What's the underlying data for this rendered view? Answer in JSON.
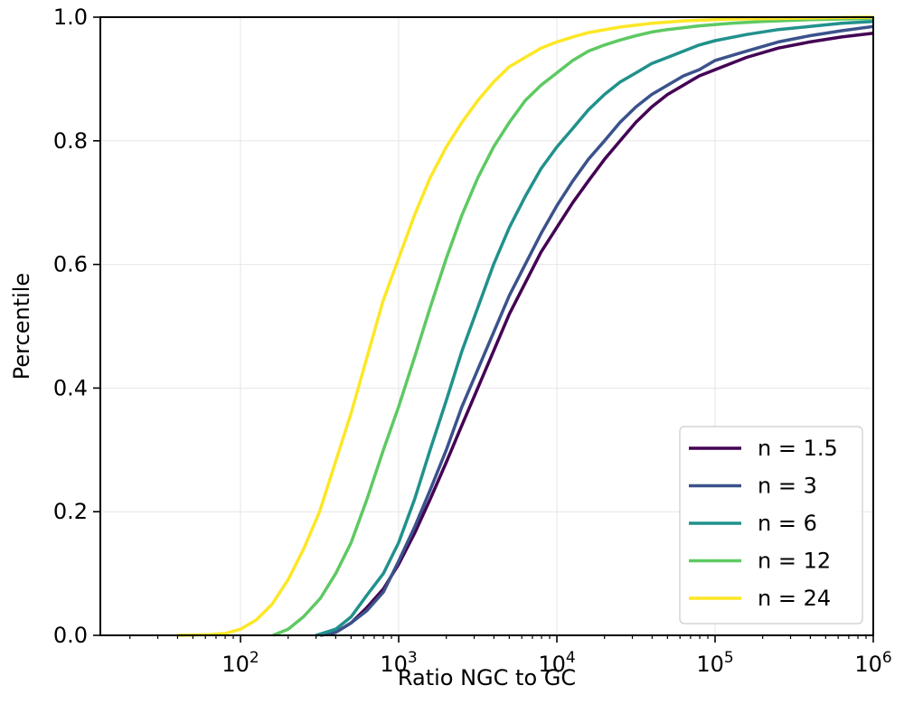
{
  "chart_data": {
    "type": "line",
    "title": "",
    "xlabel": "Ratio NGC to GC",
    "ylabel": "Percentile",
    "xscale": "log",
    "xlim": [
      13,
      1000000
    ],
    "ylim": [
      0,
      1
    ],
    "x_ticks": [
      {
        "base": "10",
        "exp": "2",
        "value": 100
      },
      {
        "base": "10",
        "exp": "3",
        "value": 1000
      },
      {
        "base": "10",
        "exp": "4",
        "value": 10000
      },
      {
        "base": "10",
        "exp": "5",
        "value": 100000
      },
      {
        "base": "10",
        "exp": "6",
        "value": 1000000
      }
    ],
    "y_ticks": [
      "0.0",
      "0.2",
      "0.4",
      "0.6",
      "0.8",
      "1.0"
    ],
    "grid": true,
    "legend_position": "bottom-right",
    "series": [
      {
        "name": "n = 1.5",
        "color": "#440154",
        "x": [
          320,
          400,
          500,
          630,
          800,
          1000,
          1260,
          1580,
          2000,
          2510,
          3160,
          3980,
          5010,
          6310,
          7940,
          10000,
          12600,
          15800,
          20000,
          25100,
          31600,
          39800,
          50100,
          63100,
          79400,
          100000,
          158000,
          251000,
          398000,
          631000,
          1000000
        ],
        "y": [
          0.0,
          0.005,
          0.02,
          0.045,
          0.075,
          0.115,
          0.165,
          0.22,
          0.28,
          0.34,
          0.4,
          0.46,
          0.52,
          0.57,
          0.62,
          0.66,
          0.7,
          0.735,
          0.77,
          0.8,
          0.83,
          0.855,
          0.875,
          0.89,
          0.905,
          0.915,
          0.935,
          0.95,
          0.96,
          0.968,
          0.974
        ]
      },
      {
        "name": "n = 3",
        "color": "#3b528b",
        "x": [
          320,
          400,
          500,
          630,
          800,
          1000,
          1260,
          1580,
          2000,
          2510,
          3160,
          3980,
          5010,
          6310,
          7940,
          10000,
          12600,
          15800,
          20000,
          25100,
          31600,
          39800,
          50100,
          63100,
          79400,
          100000,
          158000,
          251000,
          398000,
          631000,
          1000000
        ],
        "y": [
          0.0,
          0.005,
          0.02,
          0.04,
          0.07,
          0.12,
          0.175,
          0.235,
          0.3,
          0.37,
          0.43,
          0.49,
          0.55,
          0.6,
          0.65,
          0.695,
          0.735,
          0.77,
          0.8,
          0.83,
          0.855,
          0.875,
          0.89,
          0.905,
          0.915,
          0.93,
          0.945,
          0.96,
          0.97,
          0.978,
          0.985
        ]
      },
      {
        "name": "n = 6",
        "color": "#21918c",
        "x": [
          300,
          400,
          500,
          630,
          800,
          1000,
          1260,
          1580,
          2000,
          2510,
          3160,
          3980,
          5010,
          6310,
          7940,
          10000,
          12600,
          15800,
          20000,
          25100,
          31600,
          39800,
          50100,
          63100,
          79400,
          100000,
          158000,
          251000,
          398000,
          631000,
          1000000
        ],
        "y": [
          0.0,
          0.01,
          0.03,
          0.065,
          0.1,
          0.15,
          0.22,
          0.3,
          0.38,
          0.46,
          0.53,
          0.6,
          0.66,
          0.71,
          0.755,
          0.79,
          0.82,
          0.85,
          0.875,
          0.895,
          0.91,
          0.925,
          0.935,
          0.945,
          0.955,
          0.962,
          0.972,
          0.98,
          0.985,
          0.99,
          0.993
        ]
      },
      {
        "name": "n = 12",
        "color": "#5ec962",
        "x": [
          160,
          200,
          250,
          320,
          400,
          500,
          630,
          800,
          1000,
          1260,
          1580,
          2000,
          2510,
          3160,
          3980,
          5010,
          6310,
          7940,
          10000,
          12600,
          15800,
          20000,
          25100,
          31600,
          39800,
          50100,
          79400,
          126000,
          200000,
          398000,
          1000000
        ],
        "y": [
          0.0,
          0.01,
          0.03,
          0.06,
          0.1,
          0.15,
          0.22,
          0.3,
          0.37,
          0.45,
          0.53,
          0.61,
          0.68,
          0.74,
          0.79,
          0.83,
          0.865,
          0.89,
          0.91,
          0.93,
          0.945,
          0.955,
          0.963,
          0.97,
          0.976,
          0.98,
          0.986,
          0.99,
          0.993,
          0.996,
          0.998
        ]
      },
      {
        "name": "n = 24",
        "color": "#fde725",
        "x": [
          40,
          63,
          80,
          100,
          126,
          158,
          200,
          251,
          316,
          398,
          501,
          631,
          794,
          1000,
          1260,
          1580,
          2000,
          2510,
          3160,
          3980,
          5010,
          6310,
          7940,
          10000,
          12600,
          15800,
          25100,
          39800,
          63100,
          126000,
          1000000
        ],
        "y": [
          0.0,
          0.001,
          0.003,
          0.01,
          0.025,
          0.05,
          0.09,
          0.14,
          0.2,
          0.28,
          0.36,
          0.45,
          0.54,
          0.61,
          0.68,
          0.74,
          0.79,
          0.83,
          0.865,
          0.895,
          0.92,
          0.935,
          0.95,
          0.96,
          0.968,
          0.975,
          0.984,
          0.99,
          0.994,
          0.997,
          1.0
        ]
      }
    ]
  }
}
